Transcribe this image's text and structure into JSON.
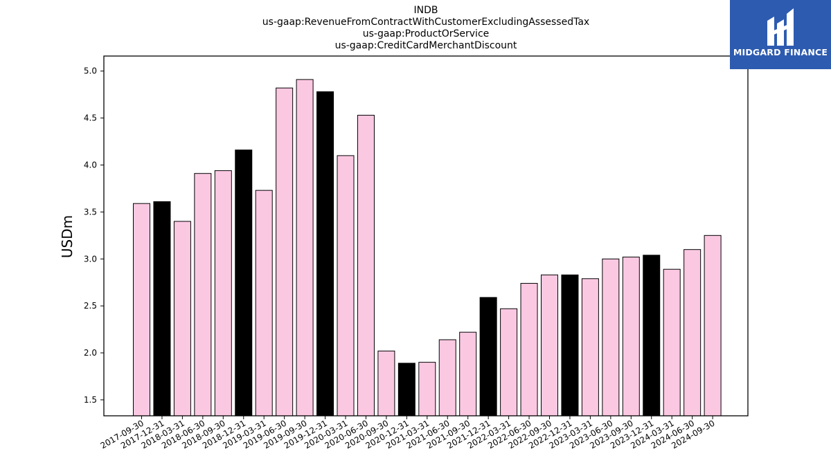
{
  "title_lines": [
    "INDB",
    "us-gaap:RevenueFromContractWithCustomerExcludingAssessedTax",
    "us-gaap:ProductOrService",
    "us-gaap:CreditCardMerchantDiscount"
  ],
  "logo": {
    "text": "MIDGARD FINANCE",
    "background": "#2d5bb0"
  },
  "colors": {
    "quarter": "#fbc8e2",
    "year_end": "#000000",
    "edge": "#000000"
  },
  "chart_data": {
    "type": "bar",
    "title": "INDB",
    "xlabel": "",
    "ylabel": "USDm",
    "ylim": [
      1.33,
      5.16
    ],
    "yticks": [
      1.5,
      2.0,
      2.5,
      3.0,
      3.5,
      4.0,
      4.5,
      5.0
    ],
    "grid": false,
    "categories": [
      "2017-09-30",
      "2017-12-31",
      "2018-03-31",
      "2018-06-30",
      "2018-09-30",
      "2018-12-31",
      "2019-03-31",
      "2019-06-30",
      "2019-09-30",
      "2019-12-31",
      "2020-03-31",
      "2020-06-30",
      "2020-09-30",
      "2020-12-31",
      "2021-03-31",
      "2021-06-30",
      "2021-09-30",
      "2021-12-31",
      "2022-03-31",
      "2022-06-30",
      "2022-09-30",
      "2022-12-31",
      "2023-03-31",
      "2023-06-30",
      "2023-09-30",
      "2023-12-31",
      "2024-03-31",
      "2024-06-30",
      "2024-09-30"
    ],
    "values": [
      3.59,
      3.61,
      3.4,
      3.91,
      3.94,
      4.16,
      3.73,
      4.82,
      4.91,
      4.78,
      4.1,
      4.53,
      2.02,
      1.89,
      1.9,
      2.14,
      2.22,
      2.59,
      2.47,
      2.74,
      2.83,
      2.83,
      2.79,
      3.0,
      3.02,
      3.04,
      2.89,
      3.1,
      3.25
    ]
  }
}
